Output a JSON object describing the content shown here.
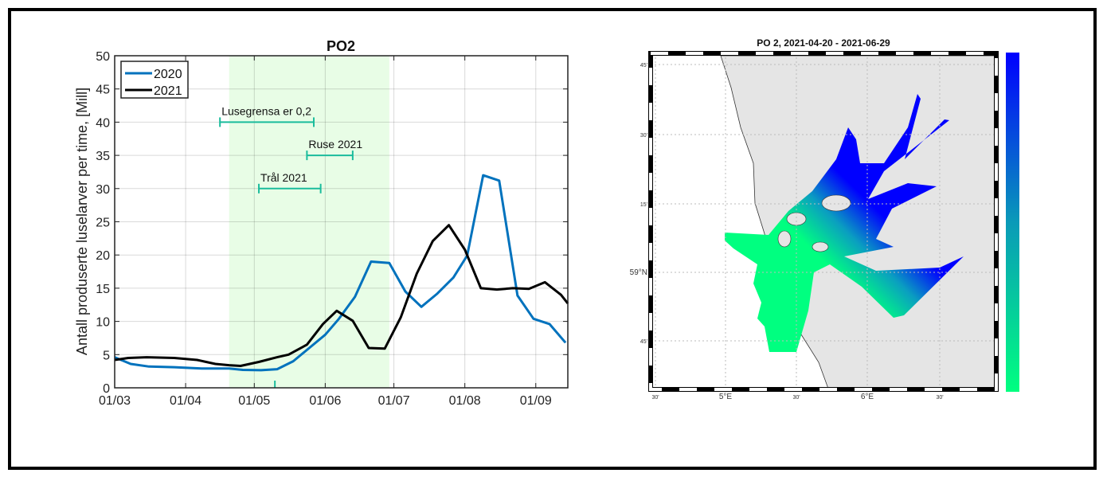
{
  "chart_data": [
    {
      "type": "line",
      "title": "PO2",
      "xlabel": "",
      "ylabel": "Antall produserte luselarver per time, [Mill]",
      "x_tick_labels": [
        "01/03",
        "01/04",
        "01/05",
        "01/06",
        "01/07",
        "01/08",
        "01/09"
      ],
      "x_ticks": [
        "03-01",
        "04-01",
        "05-01",
        "06-01",
        "07-01",
        "08-01",
        "09-01"
      ],
      "xlim": [
        "03-01",
        "09-15"
      ],
      "ylim": [
        0,
        50
      ],
      "y_ticks": [
        0,
        5,
        10,
        15,
        20,
        25,
        30,
        35,
        40,
        45,
        50
      ],
      "grid": true,
      "legend_position": "top-left",
      "shaded_period": {
        "start": "04-20",
        "end": "06-29",
        "color": "#e8fde6"
      },
      "series": [
        {
          "name": "2020",
          "color": "#0072bd",
          "x": [
            "03-01",
            "03-08",
            "03-16",
            "03-27",
            "04-08",
            "04-20",
            "04-26",
            "05-04",
            "05-11",
            "05-18",
            "05-25",
            "06-01",
            "06-07",
            "06-14",
            "06-21",
            "06-29",
            "07-06",
            "07-13",
            "07-20",
            "07-27",
            "08-02",
            "08-09",
            "08-16",
            "08-24",
            "08-31",
            "09-07",
            "09-14"
          ],
          "y": [
            4.6,
            3.6,
            3.2,
            3.1,
            2.9,
            2.9,
            2.7,
            2.65,
            2.8,
            4.0,
            6.0,
            8.0,
            10.4,
            13.7,
            19.0,
            18.8,
            14.5,
            12.2,
            14.2,
            16.6,
            19.9,
            32.0,
            31.2,
            13.9,
            10.4,
            9.6,
            6.8
          ]
        },
        {
          "name": "2021",
          "color": "#000000",
          "x": [
            "03-01",
            "03-07",
            "03-15",
            "03-27",
            "04-06",
            "04-14",
            "04-20",
            "04-25",
            "05-03",
            "05-11",
            "05-16",
            "05-24",
            "05-31",
            "06-06",
            "06-13",
            "06-20",
            "06-27",
            "07-04",
            "07-11",
            "07-18",
            "07-25",
            "08-01",
            "08-08",
            "08-15",
            "08-22",
            "08-29",
            "09-05",
            "09-12",
            "09-15"
          ],
          "y": [
            4.2,
            4.5,
            4.6,
            4.5,
            4.2,
            3.6,
            3.4,
            3.3,
            3.9,
            4.6,
            5.0,
            6.5,
            9.6,
            11.6,
            10.1,
            6.0,
            5.9,
            10.6,
            17.2,
            22.1,
            24.5,
            20.8,
            15.0,
            14.8,
            15.0,
            14.9,
            15.9,
            14.0,
            12.7
          ]
        }
      ],
      "annotations": [
        {
          "label": "Lusegrensa er 0,2",
          "start": "04-16",
          "end": "05-27",
          "y": 40,
          "color": "#1abc9c"
        },
        {
          "label": "Ruse 2021",
          "start": "05-24",
          "end": "06-13",
          "y": 35,
          "color": "#1abc9c"
        },
        {
          "label": "Trål 2021",
          "start": "05-03",
          "end": "05-30",
          "y": 30,
          "color": "#1abc9c"
        }
      ],
      "marker_tick": {
        "x": "05-10",
        "color": "#1abc9c"
      }
    },
    {
      "type": "heatmap",
      "title": "PO 2, 2021-04-20 - 2021-06-29",
      "lat_labels": [
        "45'",
        "30'",
        "15'",
        "59°N",
        "45'"
      ],
      "lon_labels": [
        "30'",
        "5°E",
        "30'",
        "6°E",
        "30'"
      ],
      "colormap": {
        "low": "#00ff80",
        "high": "#0000ff"
      },
      "land_color": "#e5e5e5",
      "colorbar": true
    }
  ]
}
